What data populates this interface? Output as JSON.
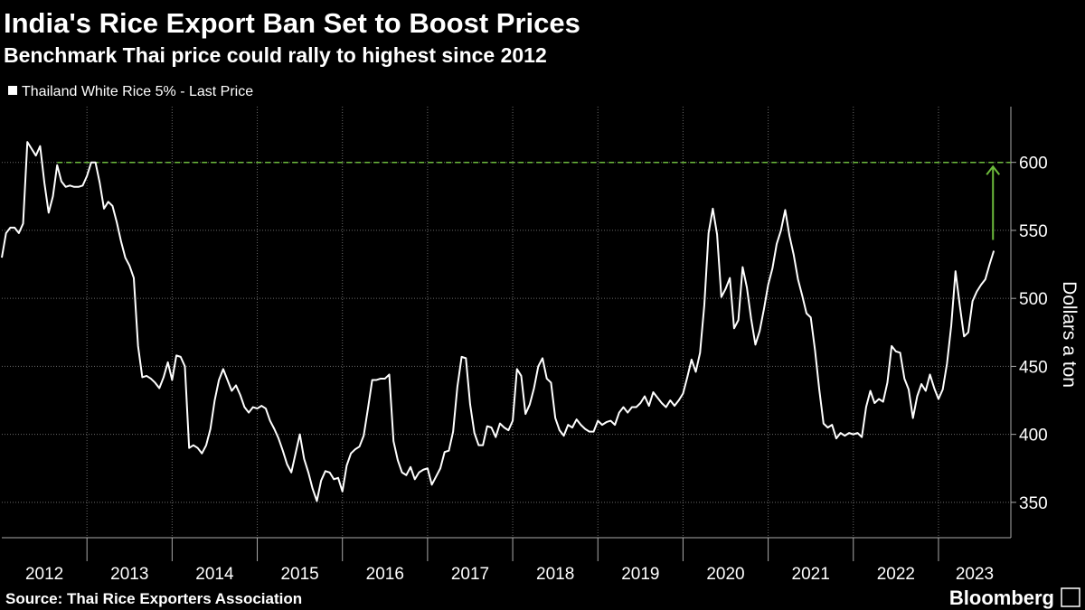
{
  "chart_data": {
    "type": "line",
    "title": "India's Rice Export Ban Set to Boost Prices",
    "subtitle": "Benchmark Thai price could rally to highest since 2012",
    "y_label": "Dollars a ton",
    "source": "Source: Thai Rice Exporters Association",
    "brand": "Bloomberg",
    "xlim": [
      2012,
      2023.85
    ],
    "xticks": [
      2013,
      2014,
      2015,
      2016,
      2017,
      2018,
      2019,
      2020,
      2021,
      2022,
      2023
    ],
    "year_labels": [
      "2012",
      "2013",
      "2014",
      "2015",
      "2016",
      "2017",
      "2018",
      "2019",
      "2020",
      "2021",
      "2022",
      "2023"
    ],
    "ylim": [
      324,
      641
    ],
    "yticks": [
      350,
      400,
      450,
      500,
      550,
      600
    ],
    "grid": true,
    "reference_line": {
      "y": 600,
      "x_start": 2012.65,
      "color": "#6dbb3c"
    },
    "arrow": {
      "x": 2023.64,
      "from": 543,
      "to": 597,
      "color": "#6dbb3c"
    },
    "x": [
      2012,
      2012.05,
      2012.1,
      2012.15,
      2012.2,
      2012.25,
      2012.3,
      2012.35,
      2012.4,
      2012.45,
      2012.5,
      2012.55,
      2012.6,
      2012.65,
      2012.7,
      2012.75,
      2012.8,
      2012.85,
      2012.9,
      2012.95,
      2013,
      2013.05,
      2013.1,
      2013.15,
      2013.2,
      2013.25,
      2013.3,
      2013.35,
      2013.4,
      2013.45,
      2013.5,
      2013.55,
      2013.6,
      2013.65,
      2013.7,
      2013.75,
      2013.8,
      2013.85,
      2013.9,
      2013.95,
      2014,
      2014.05,
      2014.1,
      2014.15,
      2014.2,
      2014.25,
      2014.3,
      2014.35,
      2014.4,
      2014.45,
      2014.5,
      2014.55,
      2014.6,
      2014.65,
      2014.7,
      2014.75,
      2014.8,
      2014.85,
      2014.9,
      2014.95,
      2015,
      2015.05,
      2015.1,
      2015.15,
      2015.2,
      2015.25,
      2015.3,
      2015.35,
      2015.4,
      2015.45,
      2015.5,
      2015.55,
      2015.6,
      2015.65,
      2015.7,
      2015.75,
      2015.8,
      2015.85,
      2015.9,
      2015.95,
      2016,
      2016.05,
      2016.1,
      2016.15,
      2016.2,
      2016.25,
      2016.3,
      2016.35,
      2016.4,
      2016.45,
      2016.5,
      2016.55,
      2016.6,
      2016.65,
      2016.7,
      2016.75,
      2016.8,
      2016.85,
      2016.9,
      2016.95,
      2017,
      2017.05,
      2017.1,
      2017.15,
      2017.2,
      2017.25,
      2017.3,
      2017.35,
      2017.4,
      2017.45,
      2017.5,
      2017.55,
      2017.6,
      2017.65,
      2017.7,
      2017.75,
      2017.8,
      2017.85,
      2017.9,
      2017.95,
      2018,
      2018.05,
      2018.1,
      2018.15,
      2018.2,
      2018.25,
      2018.3,
      2018.35,
      2018.4,
      2018.45,
      2018.5,
      2018.55,
      2018.6,
      2018.65,
      2018.7,
      2018.75,
      2018.8,
      2018.85,
      2018.9,
      2018.95,
      2019,
      2019.05,
      2019.1,
      2019.15,
      2019.2,
      2019.25,
      2019.3,
      2019.35,
      2019.4,
      2019.45,
      2019.5,
      2019.55,
      2019.6,
      2019.65,
      2019.7,
      2019.75,
      2019.8,
      2019.85,
      2019.9,
      2019.95,
      2020,
      2020.05,
      2020.1,
      2020.15,
      2020.2,
      2020.25,
      2020.3,
      2020.35,
      2020.4,
      2020.45,
      2020.5,
      2020.55,
      2020.6,
      2020.65,
      2020.7,
      2020.75,
      2020.8,
      2020.85,
      2020.9,
      2020.95,
      2021,
      2021.05,
      2021.1,
      2021.15,
      2021.2,
      2021.25,
      2021.3,
      2021.35,
      2021.4,
      2021.45,
      2021.5,
      2021.55,
      2021.6,
      2021.65,
      2021.7,
      2021.75,
      2021.8,
      2021.85,
      2021.9,
      2021.95,
      2022,
      2022.05,
      2022.1,
      2022.15,
      2022.2,
      2022.25,
      2022.3,
      2022.35,
      2022.4,
      2022.45,
      2022.5,
      2022.55,
      2022.6,
      2022.65,
      2022.7,
      2022.75,
      2022.8,
      2022.85,
      2022.9,
      2022.95,
      2023,
      2023.05,
      2023.1,
      2023.15,
      2023.2,
      2023.25,
      2023.3,
      2023.35,
      2023.4,
      2023.45,
      2023.5,
      2023.55,
      2023.6,
      2023.65
    ],
    "series": [
      {
        "name": "Thailand White Rice 5% - Last Price",
        "color": "#ffffff",
        "values": [
          530,
          548,
          552,
          552,
          548,
          555,
          615,
          610,
          605,
          612,
          585,
          563,
          575,
          598,
          586,
          582,
          583,
          582,
          582,
          583,
          590,
          600,
          600,
          585,
          566,
          571,
          568,
          556,
          542,
          530,
          524,
          515,
          465,
          442,
          443,
          441,
          438,
          434,
          442,
          453,
          440,
          458,
          457,
          450,
          390,
          392,
          390,
          386,
          392,
          404,
          425,
          440,
          448,
          440,
          432,
          436,
          429,
          420,
          416,
          420,
          419,
          421,
          419,
          410,
          404,
          397,
          388,
          378,
          372,
          386,
          400,
          382,
          372,
          360,
          351,
          366,
          373,
          372,
          367,
          368,
          358,
          377,
          386,
          389,
          391,
          399,
          419,
          440,
          440,
          441,
          441,
          444,
          395,
          381,
          372,
          370,
          376,
          367,
          372,
          374,
          375,
          363,
          369,
          375,
          387,
          388,
          402,
          435,
          457,
          456,
          422,
          401,
          392,
          392,
          406,
          405,
          398,
          408,
          405,
          403,
          410,
          448,
          443,
          415,
          422,
          434,
          450,
          456,
          441,
          438,
          412,
          403,
          399,
          407,
          405,
          411,
          407,
          404,
          402,
          402,
          410,
          407,
          409,
          410,
          407,
          416,
          420,
          416,
          420,
          420,
          423,
          428,
          421,
          431,
          427,
          423,
          420,
          425,
          421,
          425,
          430,
          442,
          455,
          446,
          460,
          495,
          548,
          566,
          547,
          501,
          507,
          515,
          478,
          484,
          523,
          508,
          485,
          466,
          476,
          492,
          510,
          522,
          540,
          550,
          565,
          546,
          532,
          514,
          502,
          489,
          486,
          462,
          433,
          408,
          405,
          407,
          397,
          401,
          399,
          401,
          400,
          401,
          398,
          420,
          432,
          423,
          426,
          424,
          438,
          465,
          461,
          460,
          441,
          433,
          412,
          428,
          437,
          432,
          444,
          434,
          426,
          433,
          452,
          480,
          520,
          495,
          472,
          475,
          498,
          505,
          510,
          514,
          525,
          535
        ]
      }
    ]
  }
}
